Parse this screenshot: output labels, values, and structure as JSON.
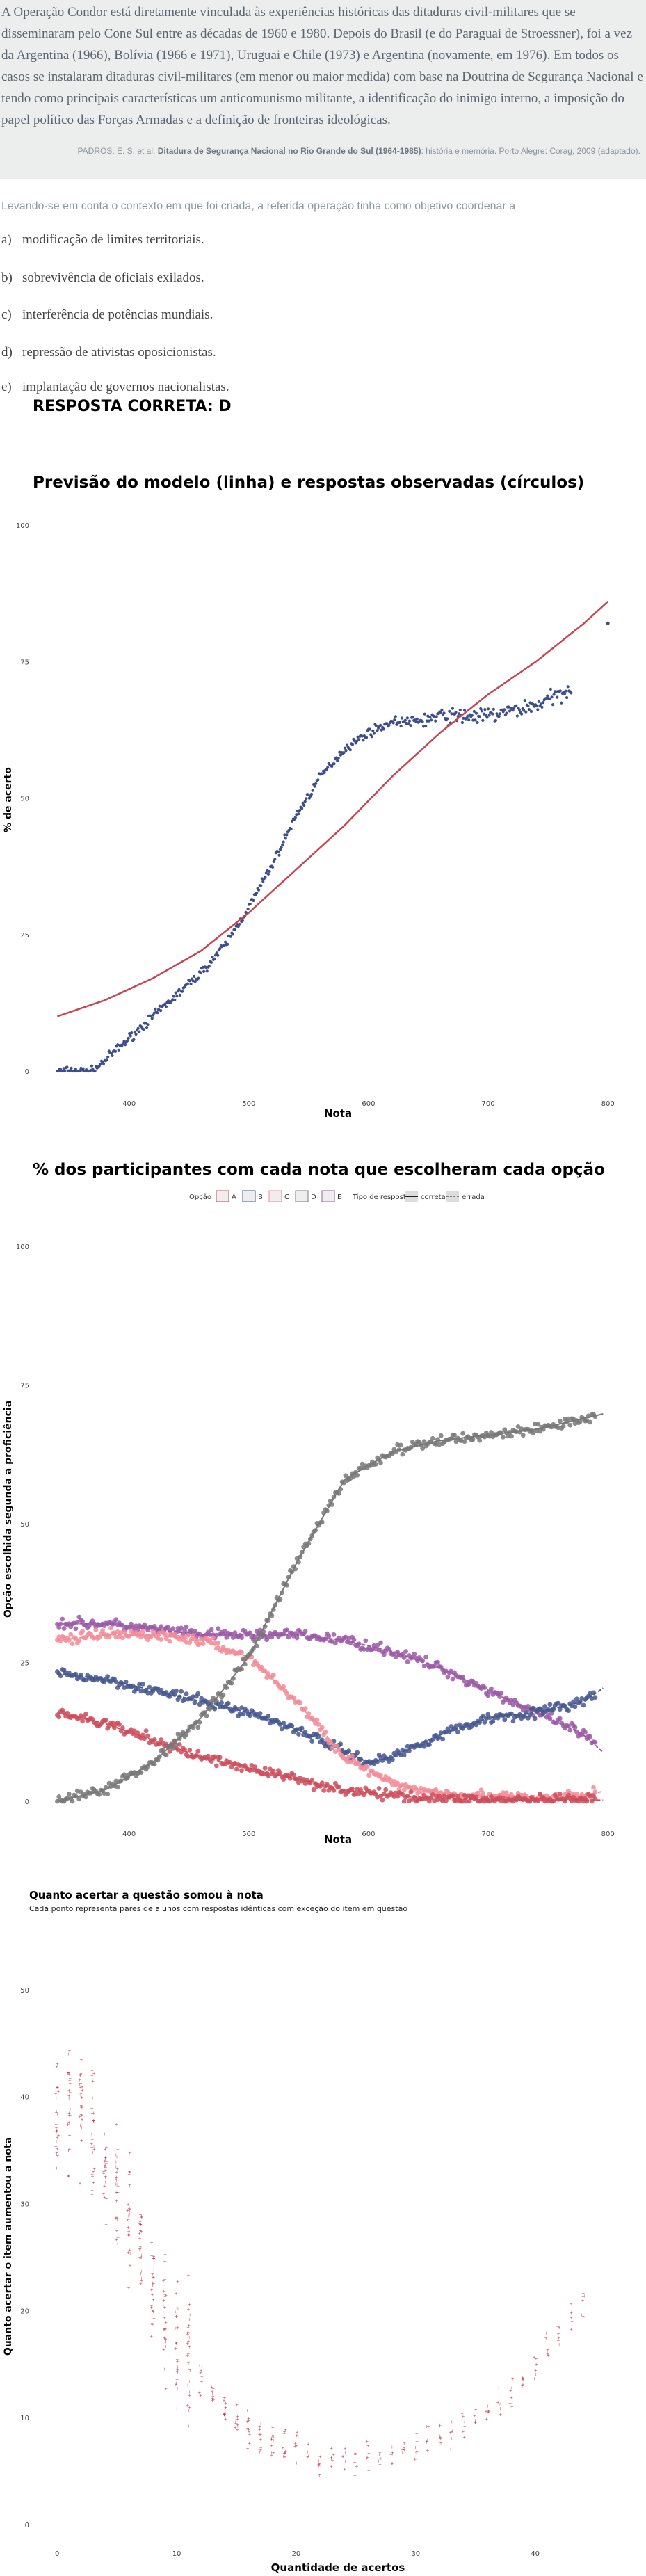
{
  "question": {
    "text": "A Operação Condor está diretamente vinculada às experiências históricas das ditaduras civil-militares que se disseminaram pelo Cone Sul entre as décadas de 1960 e 1980. Depois do Brasil (e do Paraguai de Stroessner), foi a vez da Argentina (1966), Bolívia (1966 e 1971), Uruguai e Chile (1973) e Argentina (novamente, em 1976). Em todos os casos se instalaram ditaduras civil-militares (em menor ou maior medida) com base na Doutrina de Segurança Nacional e tendo como principais características um anticomunismo militante, a identificação do inimigo interno, a imposição do papel político das Forças Armadas e a definição de fronteiras ideológicas.",
    "source_pre": "PADRÓS, E. S. et al.",
    "source_bold": "Ditadura de Segurança Nacional no Rio Grande do Sul (1964-1985)",
    "source_post": ": história e memória. Porto Alegre: Corag, 2009 (adaptado).",
    "prompt": "Levando-se em conta o contexto em que foi criada, a referida operação tinha como objetivo coordenar a",
    "options": [
      {
        "letter": "a)",
        "text": "modificação de limites territoriais."
      },
      {
        "letter": "b)",
        "text": "sobrevivência de oficiais exilados."
      },
      {
        "letter": "c)",
        "text": "interferência de potências mundiais."
      },
      {
        "letter": "d)",
        "text": "repressão de ativistas oposicionistas."
      },
      {
        "letter": "e)",
        "text": "implantação de governos nacionalistas."
      }
    ],
    "answer": "RESPOSTA CORRETA: D"
  },
  "chart_data": [
    {
      "type": "scatter",
      "title": "Previsão do modelo (linha) e respostas observadas (círculos)",
      "xlabel": "Nota",
      "ylabel": "% de acerto",
      "xlim": [
        320,
        815
      ],
      "ylim": [
        0,
        100
      ],
      "x_ticks": [
        400,
        500,
        600,
        700,
        800
      ],
      "y_ticks": [
        0,
        25,
        50,
        75,
        100
      ],
      "grid": false,
      "series": [
        {
          "kind": "line",
          "color": "#c94451",
          "x": [
            340,
            380,
            420,
            460,
            500,
            540,
            580,
            620,
            660,
            700,
            740,
            780,
            800
          ],
          "y": [
            10,
            13,
            17,
            22,
            29,
            37,
            45,
            54,
            62,
            69,
            75,
            82,
            86
          ]
        },
        {
          "kind": "points",
          "color": "#3d4f8a",
          "x": [
            340,
            370,
            380,
            400,
            420,
            440,
            460,
            480,
            500,
            520,
            540,
            560,
            580,
            600,
            620,
            640,
            660,
            680,
            700,
            720,
            740,
            760,
            780,
            800
          ],
          "y": [
            0,
            0,
            2,
            6,
            10,
            14,
            18,
            23,
            30,
            38,
            47,
            54,
            59,
            62,
            64,
            64,
            65,
            65,
            65,
            66,
            67,
            69,
            72,
            82
          ]
        }
      ]
    },
    {
      "type": "scatter",
      "title": "% dos participantes com cada nota que escolheram cada opção",
      "xlabel": "Nota",
      "ylabel": "Opção escolhida segunda a proficiência",
      "xlim": [
        320,
        815
      ],
      "ylim": [
        0,
        100
      ],
      "x_ticks": [
        400,
        500,
        600,
        700,
        800
      ],
      "y_ticks": [
        0,
        25,
        50,
        75,
        100
      ],
      "grid": false,
      "legend": {
        "position": "top",
        "title_option": "Opção",
        "options": [
          "A",
          "B",
          "C",
          "D",
          "E"
        ],
        "title_type": "Tipo de resposta",
        "types": [
          "correta",
          "errada"
        ]
      },
      "series": [
        {
          "name": "A",
          "color": "#cc4c5b",
          "x": [
            340,
            380,
            420,
            460,
            500,
            540,
            580,
            620,
            660,
            700,
            740,
            780,
            800
          ],
          "y": [
            16,
            14,
            11,
            8,
            6,
            4,
            2,
            1,
            0.5,
            0.3,
            0.2,
            0.2,
            0.2
          ]
        },
        {
          "name": "B",
          "color": "#46578f",
          "x": [
            340,
            380,
            420,
            460,
            500,
            540,
            580,
            600,
            620,
            660,
            700,
            740,
            780,
            800
          ],
          "y": [
            23,
            22,
            20,
            18,
            16,
            13,
            9,
            7,
            8,
            12,
            15,
            16,
            18,
            21
          ]
        },
        {
          "name": "C",
          "color": "#f28c98",
          "x": [
            340,
            380,
            420,
            460,
            500,
            540,
            580,
            620,
            660,
            700,
            740,
            780,
            800
          ],
          "y": [
            29,
            30,
            30,
            29,
            26,
            18,
            8,
            3,
            1.5,
            1,
            0.5,
            1,
            2
          ]
        },
        {
          "name": "D",
          "color": "#787878",
          "x": [
            340,
            380,
            420,
            460,
            500,
            540,
            580,
            620,
            660,
            700,
            740,
            780,
            800
          ],
          "y": [
            0,
            2,
            7,
            15,
            26,
            43,
            58,
            63,
            65,
            66,
            67,
            69,
            70
          ]
        },
        {
          "name": "E",
          "color": "#9b59a6",
          "x": [
            340,
            380,
            420,
            460,
            500,
            540,
            580,
            620,
            660,
            700,
            740,
            780,
            800
          ],
          "y": [
            32,
            32,
            31,
            30,
            30,
            30,
            29,
            27,
            24,
            20,
            16,
            12,
            8
          ]
        }
      ]
    },
    {
      "type": "scatter",
      "title": "Quanto acertar a questão somou à nota",
      "subtitle": "Cada ponto representa pares de alunos com respostas idênticas com exceção do item em questão",
      "xlabel": "Quantidade de acertos",
      "ylabel": "Quanto acertar o item aumentou a nota",
      "xlim": [
        -1,
        47
      ],
      "ylim": [
        0,
        52
      ],
      "x_ticks": [
        0,
        10,
        20,
        30,
        40
      ],
      "y_ticks": [
        0,
        10,
        20,
        30,
        40,
        50
      ],
      "grid": false,
      "series": [
        {
          "color": "#c83c58",
          "x": [
            1,
            2,
            3,
            4,
            5,
            6,
            7,
            8,
            9,
            10,
            11,
            12,
            14,
            16,
            18,
            20,
            22,
            24,
            26,
            28,
            30,
            32,
            34,
            36,
            38,
            40,
            42,
            44
          ],
          "y": [
            38,
            40,
            38,
            35,
            33,
            30,
            28,
            24,
            21,
            18,
            16,
            14,
            11,
            9,
            8,
            7,
            6,
            6,
            6,
            7,
            7,
            8,
            9,
            10,
            12,
            14,
            17,
            20
          ]
        }
      ]
    }
  ]
}
